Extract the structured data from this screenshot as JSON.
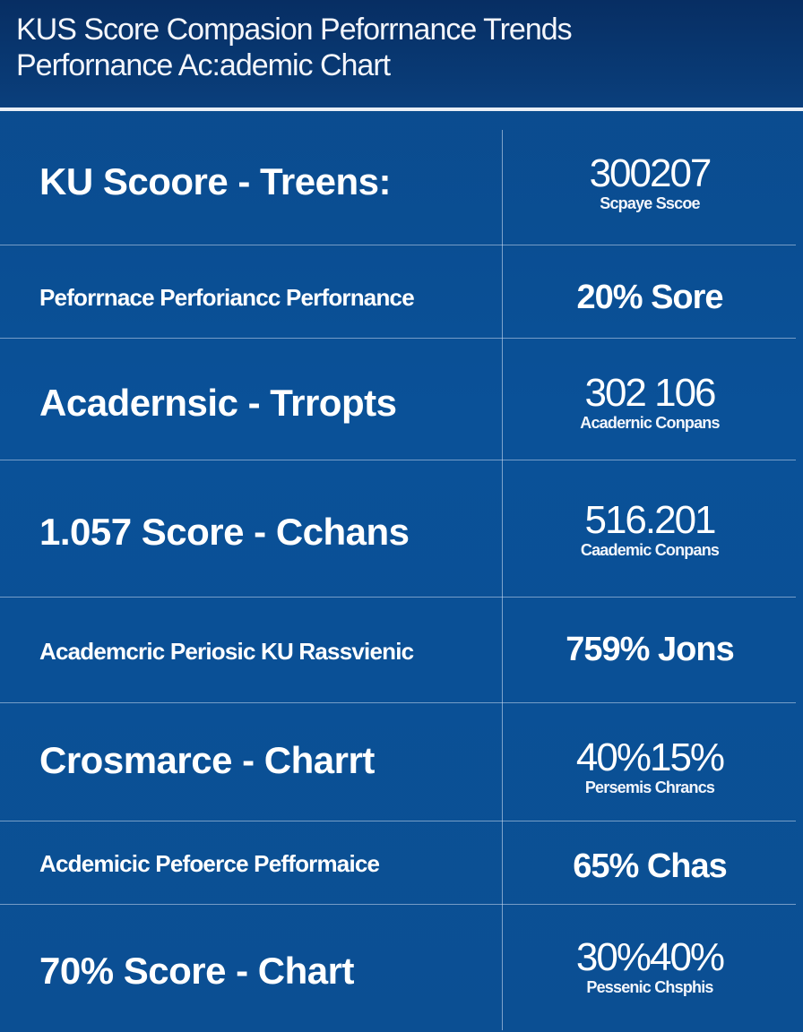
{
  "header": {
    "title_line_1": "KUS Score Compasion Peforrnance Trends",
    "title_line_2": "Perfornance Ac:ademic Chart"
  },
  "rows": [
    {
      "label": "KU Scoore  -  Treens:",
      "value": "300207",
      "sub": "Scpaye  Sscoe"
    },
    {
      "label": "Peforrnace Perforiancc Perfornance",
      "value": "20% Sore",
      "sub": ""
    },
    {
      "label": "Acadernsic  -  Trropts",
      "value": "302 106",
      "sub": "Acadernic Conpans"
    },
    {
      "label": "1.057 Score  - Cchans",
      "value": "516.201",
      "sub": "Caademic Conpans"
    },
    {
      "label": "Academcric Periosic KU Rassvienic",
      "value": "759% Jons",
      "sub": ""
    },
    {
      "label": "Crosmarce  -  Charrt",
      "value": "40%15%",
      "sub": "Persemis Chrancs"
    },
    {
      "label": "Acdemicic Pefoerce Pefformaice",
      "value": "65% Chas",
      "sub": ""
    },
    {
      "label": "70% Score  - Chart",
      "value": "30%40%",
      "sub": "Pessenic Chsphis"
    }
  ],
  "colors": {
    "background": "#0a5198",
    "header": "#072e63",
    "text": "#ffffff",
    "divider": "#cddcf0"
  }
}
